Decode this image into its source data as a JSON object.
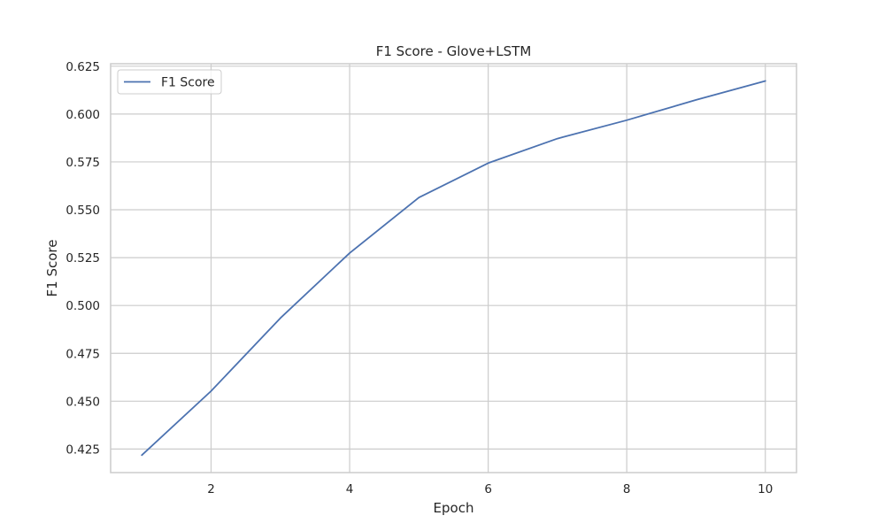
{
  "chart_data": {
    "type": "line",
    "title": "F1 Score - Glove+LSTM",
    "xlabel": "Epoch",
    "ylabel": "F1 Score",
    "xlim": [
      0.55,
      10.45
    ],
    "ylim": [
      0.4127,
      0.6263
    ],
    "x_ticks": [
      2,
      4,
      6,
      8,
      10
    ],
    "x_tick_labels": [
      "2",
      "4",
      "6",
      "8",
      "10"
    ],
    "y_ticks": [
      0.425,
      0.45,
      0.475,
      0.5,
      0.525,
      0.55,
      0.575,
      0.6,
      0.625
    ],
    "y_tick_labels": [
      "0.425",
      "0.450",
      "0.475",
      "0.500",
      "0.525",
      "0.550",
      "0.575",
      "0.600",
      "0.625"
    ],
    "grid": true,
    "legend": {
      "position": "top-left"
    },
    "series": [
      {
        "name": "F1 Score",
        "color": "#4c72b0",
        "x": [
          1,
          2,
          3,
          4,
          5,
          6,
          7,
          8,
          9,
          10
        ],
        "values": [
          0.4218,
          0.4553,
          0.4934,
          0.5274,
          0.5564,
          0.5744,
          0.5872,
          0.5968,
          0.6074,
          0.6173
        ]
      }
    ]
  }
}
